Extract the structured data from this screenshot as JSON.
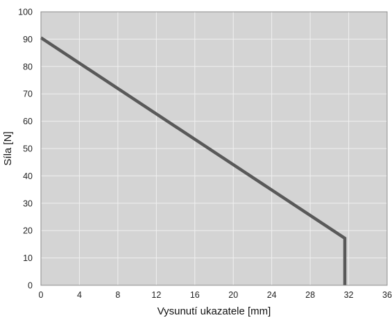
{
  "chart_data": {
    "type": "line",
    "title": "",
    "xlabel": "Vysunutí ukazatele [mm]",
    "ylabel": "Síla [N]",
    "xlim": [
      0,
      36
    ],
    "ylim": [
      0,
      100
    ],
    "x_ticks": [
      0,
      4,
      8,
      12,
      16,
      20,
      24,
      28,
      32,
      36
    ],
    "y_ticks": [
      0,
      10,
      20,
      30,
      40,
      50,
      60,
      70,
      80,
      90,
      100
    ],
    "x_tick_labels": [
      "0",
      "4",
      "8",
      "12",
      "16",
      "20",
      "24",
      "28",
      "32",
      "36"
    ],
    "y_tick_labels": [
      "0",
      "10",
      "20",
      "30",
      "40",
      "50",
      "60",
      "70",
      "80",
      "90",
      "100"
    ],
    "grid": true,
    "legend": "none",
    "series": [
      {
        "x": [
          0,
          31.6,
          31.6
        ],
        "y": [
          90.5,
          17.2,
          0
        ]
      }
    ],
    "colors": {
      "plot_background": "#d4d4d4",
      "grid": "#f0f0f0",
      "line": "#595959",
      "frame": "#8c8c8c"
    }
  }
}
